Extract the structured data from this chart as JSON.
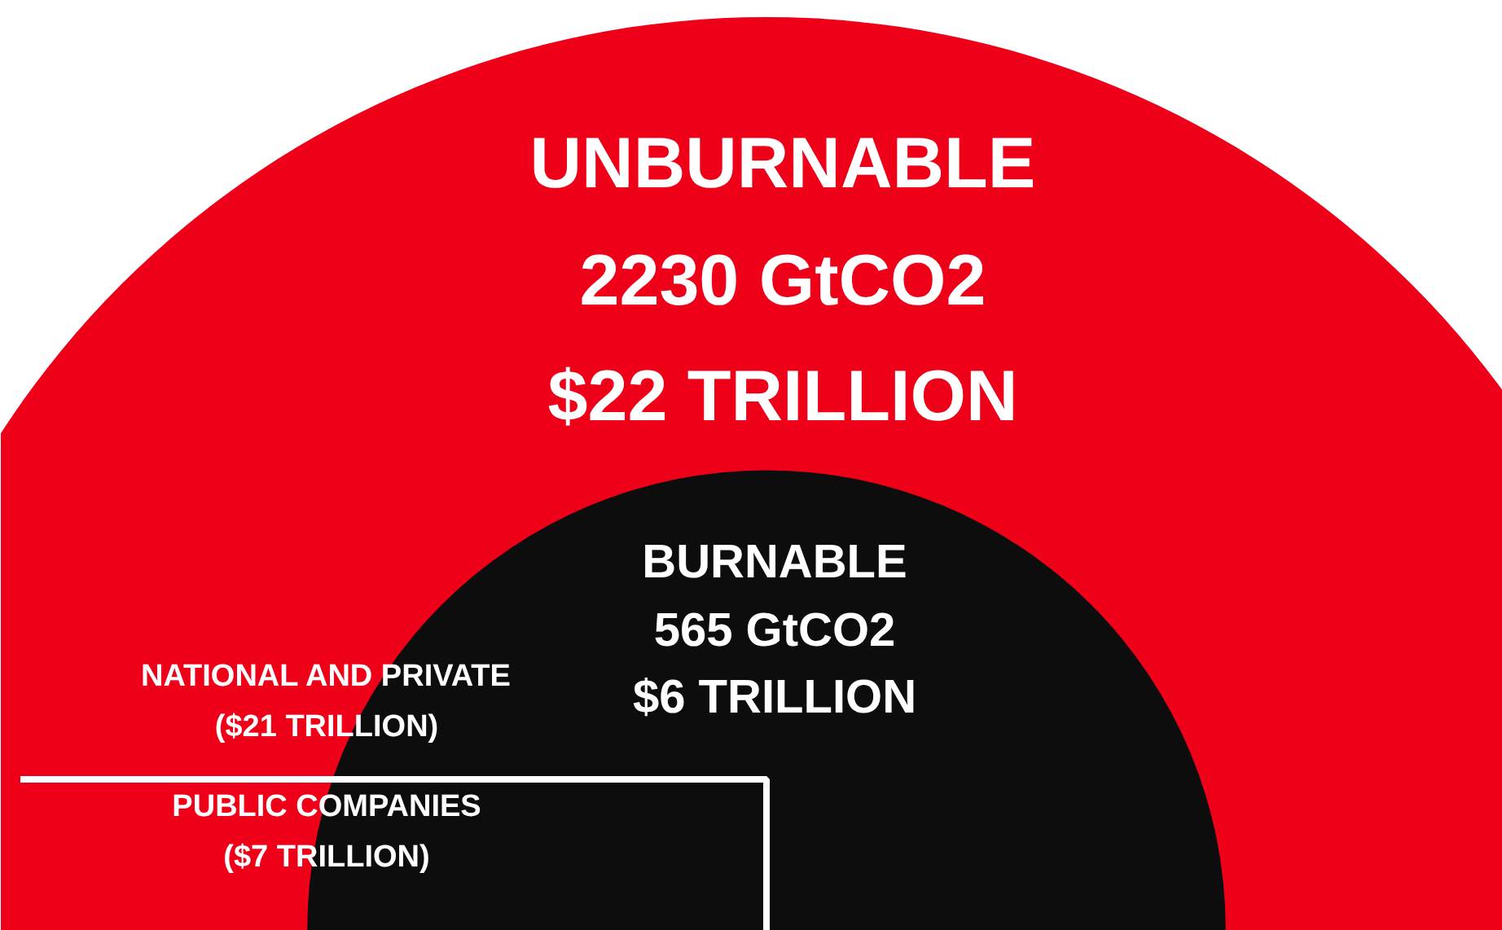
{
  "chart_data": {
    "type": "other",
    "categories": [
      "UNBURNABLE",
      "BURNABLE"
    ],
    "values": [
      2230,
      565
    ],
    "value_labels": [
      "2230 GtCO2",
      "565 GtCO2"
    ],
    "colors": [
      "#ee0018",
      "#0d0d0d"
    ],
    "annotations": [
      "$22 TRILLION",
      "$6 TRILLION",
      "NATIONAL AND PRIVATE",
      "($21 TRILLION)",
      "PUBLIC COMPANIES",
      "($7 TRILLION)"
    ]
  }
}
